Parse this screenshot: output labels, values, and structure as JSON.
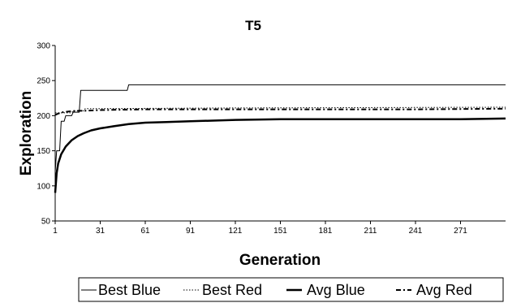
{
  "chart_data": {
    "type": "line",
    "title": "T5",
    "xlabel": "Generation",
    "ylabel": "Exploration",
    "xlim": [
      1,
      301
    ],
    "ylim": [
      50,
      300
    ],
    "x_ticks": [
      1,
      31,
      61,
      91,
      121,
      151,
      181,
      211,
      241,
      271
    ],
    "y_ticks": [
      50,
      100,
      150,
      200,
      250,
      300
    ],
    "grid": false,
    "legend_position": "bottom",
    "series": [
      {
        "name": "Best Blue",
        "style": "thin-solid",
        "points": [
          [
            1,
            120
          ],
          [
            2,
            150
          ],
          [
            4,
            150
          ],
          [
            5,
            192
          ],
          [
            7,
            192
          ],
          [
            8,
            200
          ],
          [
            12,
            200
          ],
          [
            13,
            205
          ],
          [
            17,
            205
          ],
          [
            18,
            236
          ],
          [
            49,
            236
          ],
          [
            50,
            244
          ],
          [
            301,
            244
          ]
        ]
      },
      {
        "name": "Best Red",
        "style": "dotted",
        "points": [
          [
            1,
            204
          ],
          [
            12,
            204
          ],
          [
            13,
            207
          ],
          [
            20,
            207
          ],
          [
            21,
            210
          ],
          [
            120,
            211
          ],
          [
            301,
            212
          ]
        ]
      },
      {
        "name": "Avg Blue",
        "style": "thick-solid",
        "points": [
          [
            1,
            90
          ],
          [
            2,
            118
          ],
          [
            3,
            132
          ],
          [
            5,
            145
          ],
          [
            8,
            156
          ],
          [
            12,
            165
          ],
          [
            16,
            171
          ],
          [
            20,
            175
          ],
          [
            25,
            179
          ],
          [
            31,
            182
          ],
          [
            40,
            185
          ],
          [
            50,
            188
          ],
          [
            61,
            190
          ],
          [
            75,
            191
          ],
          [
            91,
            192
          ],
          [
            121,
            194
          ],
          [
            151,
            195
          ],
          [
            181,
            195
          ],
          [
            211,
            195
          ],
          [
            241,
            195
          ],
          [
            271,
            195
          ],
          [
            301,
            196
          ]
        ]
      },
      {
        "name": "Avg Red",
        "style": "dash-dot",
        "points": [
          [
            1,
            201
          ],
          [
            3,
            203
          ],
          [
            6,
            205
          ],
          [
            10,
            206
          ],
          [
            15,
            207
          ],
          [
            20,
            207
          ],
          [
            31,
            208
          ],
          [
            61,
            209
          ],
          [
            91,
            209
          ],
          [
            121,
            209
          ],
          [
            181,
            209
          ],
          [
            241,
            209
          ],
          [
            301,
            210
          ]
        ]
      }
    ]
  }
}
